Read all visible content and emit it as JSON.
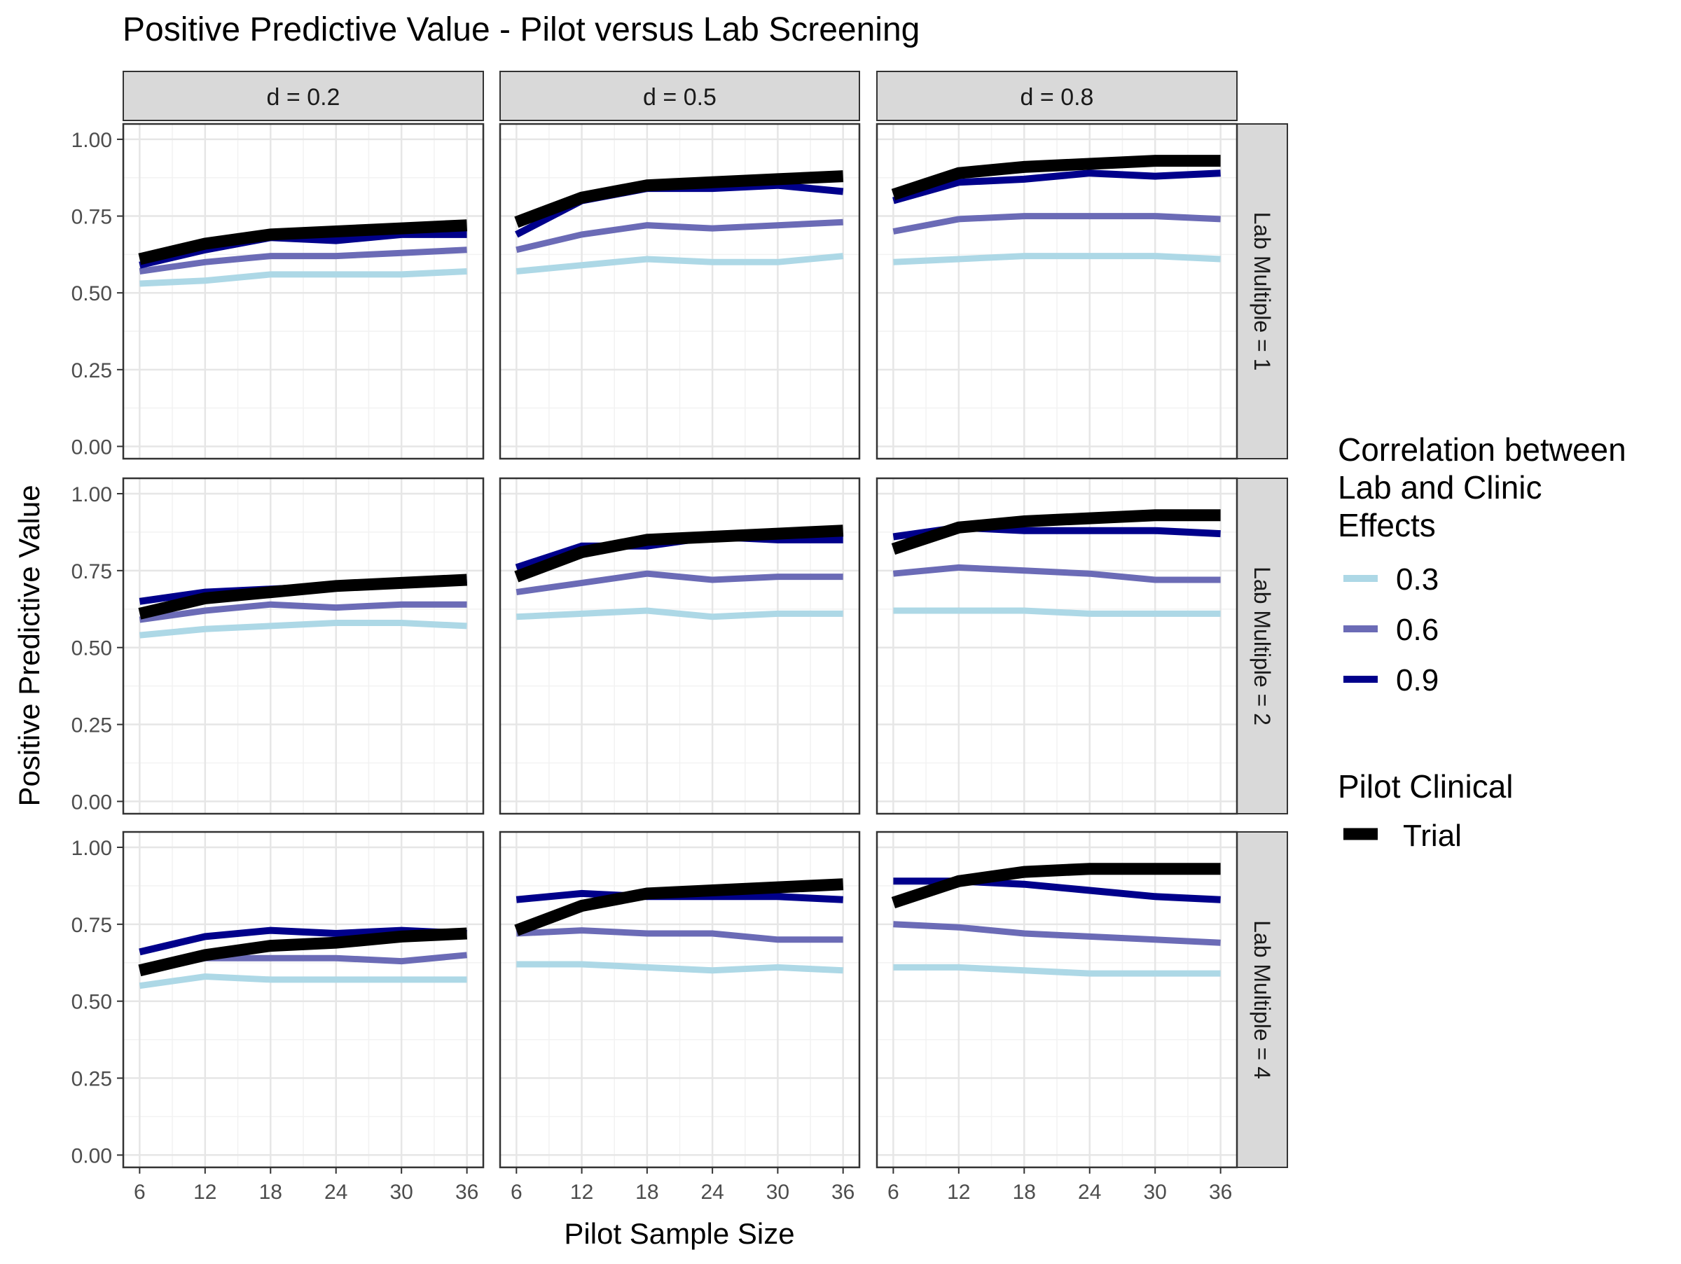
{
  "chart_data": {
    "type": "line",
    "title": "Positive Predictive Value - Pilot versus Lab Screening",
    "xlabel": "Pilot Sample Size",
    "ylabel": "Positive Predictive Value",
    "x": [
      6,
      12,
      18,
      24,
      30,
      36
    ],
    "x_ticks": [
      "6",
      "12",
      "18",
      "24",
      "30",
      "36"
    ],
    "ylim": [
      0,
      1
    ],
    "y_ticks": [
      "0.00",
      "0.25",
      "0.50",
      "0.75",
      "1.00"
    ],
    "grid": true,
    "col_facets": [
      "d =  0.2",
      "d =  0.5",
      "d =  0.8"
    ],
    "row_facets": [
      "Lab Multiple = 1",
      "Lab Multiple = 2",
      "Lab Multiple = 4"
    ],
    "colors": {
      "0.3": "#ADD8E6",
      "0.6": "#6B6BB6",
      "0.9": "#00008B",
      "trial": "#000000"
    },
    "legend": {
      "placement": "right",
      "color_title": [
        "Correlation between",
        "Lab and Clinic",
        "Effects"
      ],
      "color_items": [
        "0.3",
        "0.6",
        "0.9"
      ],
      "trial_title": "Pilot Clinical",
      "trial_item": "Trial"
    },
    "panels": [
      {
        "row": 0,
        "col": 0,
        "series": [
          {
            "name": "0.3",
            "values": [
              0.53,
              0.54,
              0.56,
              0.56,
              0.56,
              0.57
            ]
          },
          {
            "name": "0.6",
            "values": [
              0.57,
              0.6,
              0.62,
              0.62,
              0.63,
              0.64
            ]
          },
          {
            "name": "0.9",
            "values": [
              0.59,
              0.64,
              0.68,
              0.67,
              0.69,
              0.69
            ]
          },
          {
            "name": "Trial",
            "values": [
              0.61,
              0.66,
              0.69,
              0.7,
              0.71,
              0.72
            ]
          }
        ]
      },
      {
        "row": 0,
        "col": 1,
        "series": [
          {
            "name": "0.3",
            "values": [
              0.57,
              0.59,
              0.61,
              0.6,
              0.6,
              0.62
            ]
          },
          {
            "name": "0.6",
            "values": [
              0.64,
              0.69,
              0.72,
              0.71,
              0.72,
              0.73
            ]
          },
          {
            "name": "0.9",
            "values": [
              0.69,
              0.8,
              0.84,
              0.84,
              0.85,
              0.83
            ]
          },
          {
            "name": "Trial",
            "values": [
              0.73,
              0.81,
              0.85,
              0.86,
              0.87,
              0.88
            ]
          }
        ]
      },
      {
        "row": 0,
        "col": 2,
        "series": [
          {
            "name": "0.3",
            "values": [
              0.6,
              0.61,
              0.62,
              0.62,
              0.62,
              0.61
            ]
          },
          {
            "name": "0.6",
            "values": [
              0.7,
              0.74,
              0.75,
              0.75,
              0.75,
              0.74
            ]
          },
          {
            "name": "0.9",
            "values": [
              0.8,
              0.86,
              0.87,
              0.89,
              0.88,
              0.89
            ]
          },
          {
            "name": "Trial",
            "values": [
              0.82,
              0.89,
              0.91,
              0.92,
              0.93,
              0.93
            ]
          }
        ]
      },
      {
        "row": 1,
        "col": 0,
        "series": [
          {
            "name": "0.3",
            "values": [
              0.54,
              0.56,
              0.57,
              0.58,
              0.58,
              0.57
            ]
          },
          {
            "name": "0.6",
            "values": [
              0.59,
              0.62,
              0.64,
              0.63,
              0.64,
              0.64
            ]
          },
          {
            "name": "0.9",
            "values": [
              0.65,
              0.68,
              0.69,
              0.7,
              0.71,
              0.72
            ]
          },
          {
            "name": "Trial",
            "values": [
              0.61,
              0.66,
              0.68,
              0.7,
              0.71,
              0.72
            ]
          }
        ]
      },
      {
        "row": 1,
        "col": 1,
        "series": [
          {
            "name": "0.3",
            "values": [
              0.6,
              0.61,
              0.62,
              0.6,
              0.61,
              0.61
            ]
          },
          {
            "name": "0.6",
            "values": [
              0.68,
              0.71,
              0.74,
              0.72,
              0.73,
              0.73
            ]
          },
          {
            "name": "0.9",
            "values": [
              0.76,
              0.83,
              0.83,
              0.86,
              0.85,
              0.85
            ]
          },
          {
            "name": "Trial",
            "values": [
              0.73,
              0.81,
              0.85,
              0.86,
              0.87,
              0.88
            ]
          }
        ]
      },
      {
        "row": 1,
        "col": 2,
        "series": [
          {
            "name": "0.3",
            "values": [
              0.62,
              0.62,
              0.62,
              0.61,
              0.61,
              0.61
            ]
          },
          {
            "name": "0.6",
            "values": [
              0.74,
              0.76,
              0.75,
              0.74,
              0.72,
              0.72
            ]
          },
          {
            "name": "0.9",
            "values": [
              0.86,
              0.89,
              0.88,
              0.88,
              0.88,
              0.87
            ]
          },
          {
            "name": "Trial",
            "values": [
              0.82,
              0.89,
              0.91,
              0.92,
              0.93,
              0.93
            ]
          }
        ]
      },
      {
        "row": 2,
        "col": 0,
        "series": [
          {
            "name": "0.3",
            "values": [
              0.55,
              0.58,
              0.57,
              0.57,
              0.57,
              0.57
            ]
          },
          {
            "name": "0.6",
            "values": [
              0.6,
              0.64,
              0.64,
              0.64,
              0.63,
              0.65
            ]
          },
          {
            "name": "0.9",
            "values": [
              0.66,
              0.71,
              0.73,
              0.72,
              0.73,
              0.72
            ]
          },
          {
            "name": "Trial",
            "values": [
              0.6,
              0.65,
              0.68,
              0.69,
              0.71,
              0.72
            ]
          }
        ]
      },
      {
        "row": 2,
        "col": 1,
        "series": [
          {
            "name": "0.3",
            "values": [
              0.62,
              0.62,
              0.61,
              0.6,
              0.61,
              0.6
            ]
          },
          {
            "name": "0.6",
            "values": [
              0.72,
              0.73,
              0.72,
              0.72,
              0.7,
              0.7
            ]
          },
          {
            "name": "0.9",
            "values": [
              0.83,
              0.85,
              0.84,
              0.84,
              0.84,
              0.83
            ]
          },
          {
            "name": "Trial",
            "values": [
              0.73,
              0.81,
              0.85,
              0.86,
              0.87,
              0.88
            ]
          }
        ]
      },
      {
        "row": 2,
        "col": 2,
        "series": [
          {
            "name": "0.3",
            "values": [
              0.61,
              0.61,
              0.6,
              0.59,
              0.59,
              0.59
            ]
          },
          {
            "name": "0.6",
            "values": [
              0.75,
              0.74,
              0.72,
              0.71,
              0.7,
              0.69
            ]
          },
          {
            "name": "0.9",
            "values": [
              0.89,
              0.89,
              0.88,
              0.86,
              0.84,
              0.83
            ]
          },
          {
            "name": "Trial",
            "values": [
              0.82,
              0.89,
              0.92,
              0.93,
              0.93,
              0.93
            ]
          }
        ]
      }
    ]
  }
}
